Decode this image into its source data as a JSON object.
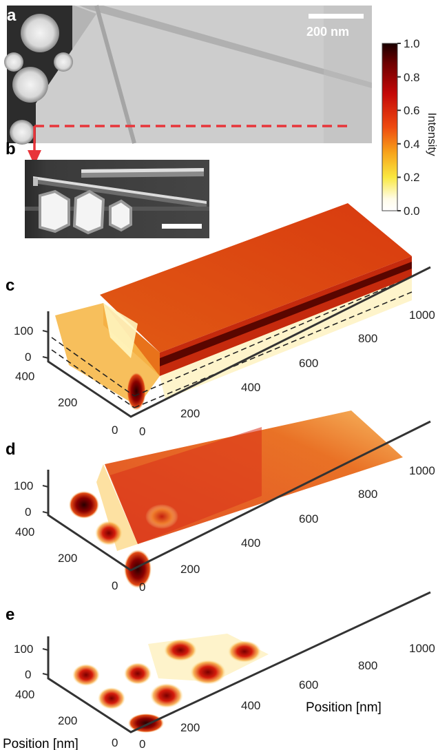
{
  "panels": {
    "a": {
      "label": "a",
      "scalebar": "200 nm"
    },
    "b": {
      "label": "b"
    },
    "c": {
      "label": "c"
    },
    "d": {
      "label": "d"
    },
    "e": {
      "label": "e"
    }
  },
  "colorbar": {
    "title": "Intensity",
    "ticks": [
      "1.0",
      "0.8",
      "0.6",
      "0.4",
      "0.2",
      "0.0"
    ],
    "stops": [
      "#1a0000",
      "#6e0000",
      "#c40808",
      "#ee4a10",
      "#f7a21a",
      "#f9e840",
      "#fffce8",
      "#ffffff"
    ]
  },
  "axes": {
    "z_ticks": [
      "100",
      "0"
    ],
    "y_ticks": [
      "400",
      "200",
      "0"
    ],
    "x_ticks": [
      "0",
      "200",
      "400",
      "600",
      "800",
      "1000"
    ],
    "x_label": "Position [nm]",
    "y_label": "Position [nm]"
  },
  "colors": {
    "dashed_line": "#e8353a",
    "arrow": "#e8353a"
  }
}
